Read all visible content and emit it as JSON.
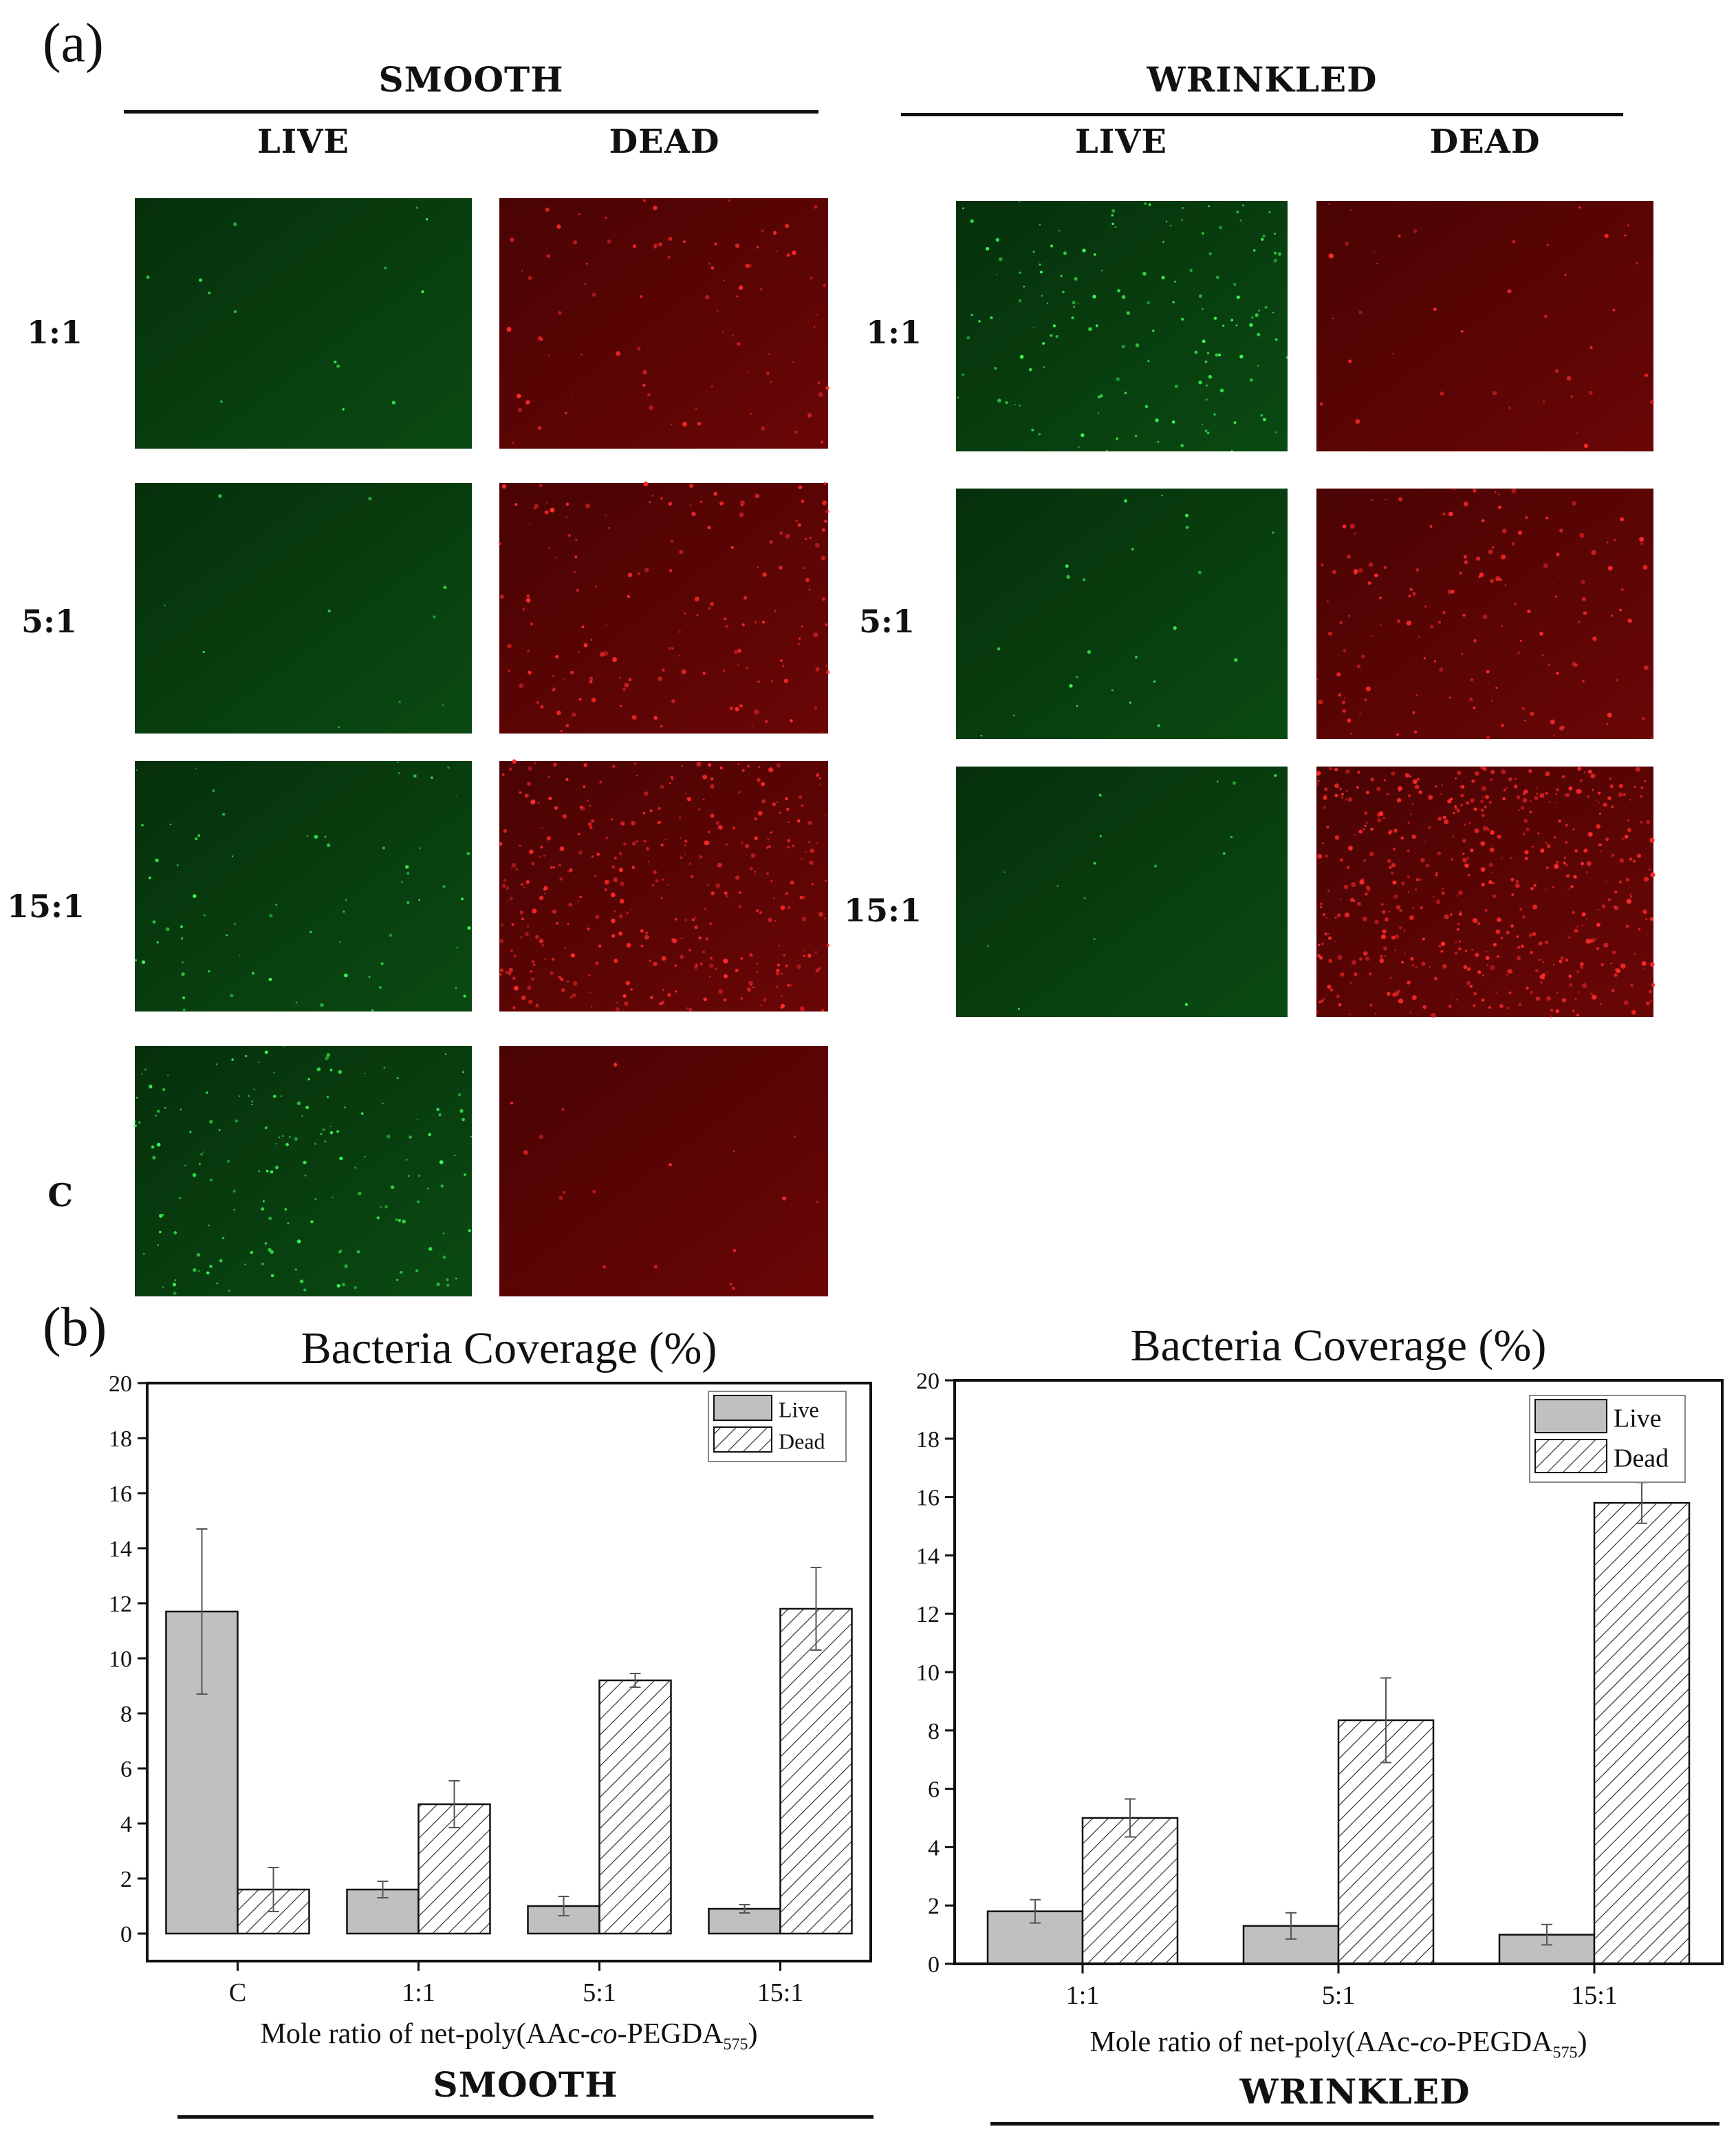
{
  "panel_a": {
    "letter": "(a)",
    "smooth": {
      "title": "SMOOTH",
      "col_live": "LIVE",
      "col_dead": "DEAD",
      "rows": [
        "1:1",
        "5:1",
        "15:1",
        "C"
      ]
    },
    "wrinkled": {
      "title": "WRINKLED",
      "col_live": "LIVE",
      "col_dead": "DEAD",
      "rows": [
        "1:1",
        "5:1",
        "15:1"
      ]
    },
    "colors": {
      "live": "#0a4a12",
      "dead": "#6a0606",
      "live_dot": "#3cff55",
      "dead_dot": "#ff2a2a"
    }
  },
  "panel_b": {
    "letter": "(b)",
    "smooth_caption": "SMOOTH",
    "wrinkled_caption": "WRINKLED",
    "xlabel_pre": "Mole ratio of net-poly(AAc-",
    "xlabel_italic": "co",
    "xlabel_mid": "-PEGDA",
    "xlabel_sub": "575",
    "xlabel_post": ")"
  },
  "chart_data": [
    {
      "type": "bar",
      "title": "Bacteria Coverage (%)",
      "xlabel": "Mole ratio of net-poly(AAc-co-PEGDA575)",
      "ylabel": "",
      "categories": [
        "C",
        "1:1",
        "5:1",
        "15:1"
      ],
      "ylim": [
        -1,
        20
      ],
      "yticks": [
        0,
        2,
        4,
        6,
        8,
        10,
        12,
        14,
        16,
        18,
        20
      ],
      "legend_position": "top-right",
      "series": [
        {
          "name": "Live",
          "fill": "solid-gray",
          "values": [
            11.7,
            1.6,
            1.0,
            0.9
          ],
          "errors": [
            3.0,
            0.3,
            0.35,
            0.15
          ]
        },
        {
          "name": "Dead",
          "fill": "hatched",
          "values": [
            1.6,
            4.7,
            9.2,
            11.8
          ],
          "errors": [
            0.8,
            0.85,
            0.25,
            1.5
          ]
        }
      ]
    },
    {
      "type": "bar",
      "title": "Bacteria Coverage (%)",
      "xlabel": "Mole ratio of net-poly(AAc-co-PEGDA575)",
      "ylabel": "",
      "categories": [
        "1:1",
        "5:1",
        "15:1"
      ],
      "ylim": [
        0,
        20
      ],
      "yticks": [
        0,
        2,
        4,
        6,
        8,
        10,
        12,
        14,
        16,
        18,
        20
      ],
      "legend_position": "top-right",
      "series": [
        {
          "name": "Live",
          "fill": "solid-gray",
          "values": [
            1.8,
            1.3,
            1.0
          ],
          "errors": [
            0.4,
            0.45,
            0.35
          ]
        },
        {
          "name": "Dead",
          "fill": "hatched",
          "values": [
            5.0,
            8.35,
            15.8
          ],
          "errors": [
            0.65,
            1.45,
            0.7
          ]
        }
      ]
    }
  ]
}
